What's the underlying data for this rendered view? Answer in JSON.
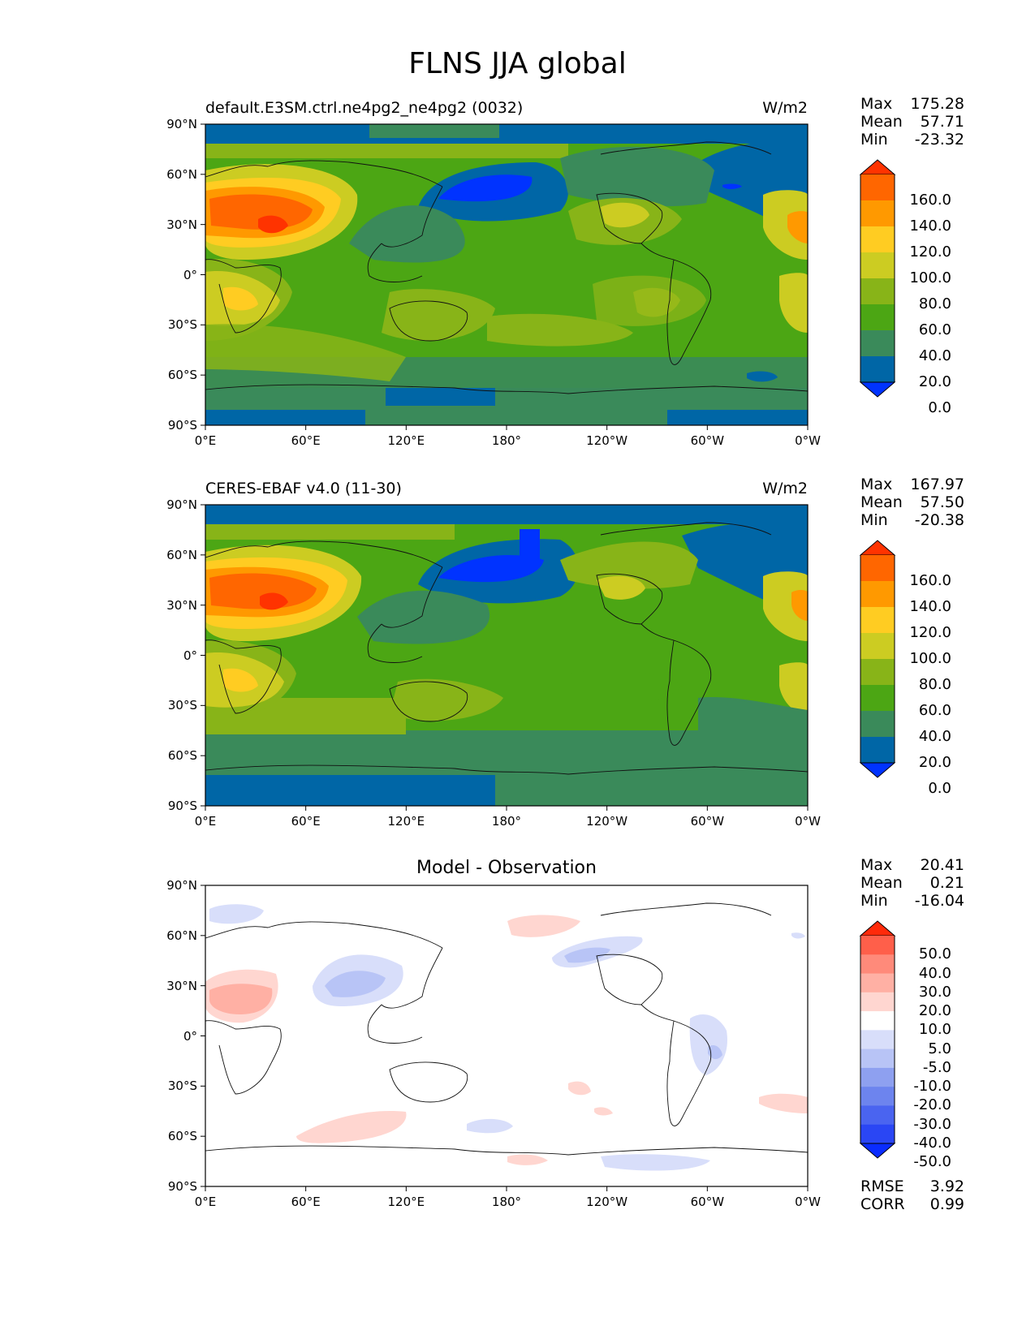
{
  "title": "FLNS JJA global",
  "panels": [
    {
      "left_title": "default.E3SM.ctrl.ne4pg2_ne4pg2 (0032)",
      "center_title": "",
      "units": "W/m2",
      "stats": [
        [
          "Max",
          "175.28"
        ],
        [
          "Mean",
          "57.71"
        ],
        [
          "Min",
          "-23.32"
        ]
      ],
      "colorbar_labels": [
        "160.0",
        "140.0",
        "120.0",
        "100.0",
        "80.0",
        "60.0",
        "40.0",
        "20.0",
        "0.0"
      ],
      "colorbar_colors": [
        "#ff3300",
        "#ff6600",
        "#ff9900",
        "#ffcc22",
        "#cccc22",
        "#88b418",
        "#4ca614",
        "#3a8a5a",
        "#0066a6",
        "#0033ff"
      ]
    },
    {
      "left_title": "CERES-EBAF v4.0 (11-30)",
      "center_title": "",
      "units": "W/m2",
      "stats": [
        [
          "Max",
          "167.97"
        ],
        [
          "Mean",
          "57.50"
        ],
        [
          "Min",
          "-20.38"
        ]
      ],
      "colorbar_labels": [
        "160.0",
        "140.0",
        "120.0",
        "100.0",
        "80.0",
        "60.0",
        "40.0",
        "20.0",
        "0.0"
      ],
      "colorbar_colors": [
        "#ff3300",
        "#ff6600",
        "#ff9900",
        "#ffcc22",
        "#cccc22",
        "#88b418",
        "#4ca614",
        "#3a8a5a",
        "#0066a6",
        "#0033ff"
      ]
    },
    {
      "left_title": "",
      "center_title": "Model - Observation",
      "units": "",
      "stats": [
        [
          "Max",
          "20.41"
        ],
        [
          "Mean",
          "0.21"
        ],
        [
          "Min",
          "-16.04"
        ]
      ],
      "colorbar_labels": [
        "50.0",
        "40.0",
        "30.0",
        "20.0",
        "10.0",
        "5.0",
        "-5.0",
        "-10.0",
        "-20.0",
        "-30.0",
        "-40.0",
        "-50.0"
      ],
      "colorbar_colors": [
        "#ff2a0a",
        "#ff5f4a",
        "#ff8a7a",
        "#ffb0a4",
        "#ffd6d0",
        "#ffffff",
        "#d8defa",
        "#b8c4f6",
        "#8ea0f0",
        "#6d84ee",
        "#4a64f0",
        "#2a46f4",
        "#0a2cff"
      ],
      "metrics": [
        [
          "RMSE",
          "3.92"
        ],
        [
          "CORR",
          "0.99"
        ]
      ]
    }
  ],
  "axes": {
    "x_ticks": [
      "0°E",
      "60°E",
      "120°E",
      "180°",
      "120°W",
      "60°W",
      "0°W"
    ],
    "y_ticks": [
      "90°N",
      "60°N",
      "30°N",
      "0°",
      "30°S",
      "60°S",
      "90°S"
    ]
  },
  "chart_data": [
    {
      "type": "heatmap",
      "title": "default.E3SM.ctrl.ne4pg2_ne4pg2 (0032)",
      "units": "W/m2",
      "x_ticks": [
        "0°E",
        "60°E",
        "120°E",
        "180°",
        "120°W",
        "60°W",
        "0°W"
      ],
      "y_ticks": [
        "90°N",
        "60°N",
        "30°N",
        "0°",
        "30°S",
        "60°S",
        "90°S"
      ],
      "contour_levels": [
        0,
        20,
        40,
        60,
        80,
        100,
        120,
        140,
        160
      ],
      "stats": {
        "max": 175.28,
        "mean": 57.71,
        "min": -23.32
      }
    },
    {
      "type": "heatmap",
      "title": "CERES-EBAF v4.0 (11-30)",
      "units": "W/m2",
      "x_ticks": [
        "0°E",
        "60°E",
        "120°E",
        "180°",
        "120°W",
        "60°W",
        "0°W"
      ],
      "y_ticks": [
        "90°N",
        "60°N",
        "30°N",
        "0°",
        "30°S",
        "60°S",
        "90°S"
      ],
      "contour_levels": [
        0,
        20,
        40,
        60,
        80,
        100,
        120,
        140,
        160
      ],
      "stats": {
        "max": 167.97,
        "mean": 57.5,
        "min": -20.38
      }
    },
    {
      "type": "heatmap",
      "title": "Model - Observation",
      "x_ticks": [
        "0°E",
        "60°E",
        "120°E",
        "180°",
        "120°W",
        "60°W",
        "0°W"
      ],
      "y_ticks": [
        "90°N",
        "60°N",
        "30°N",
        "0°",
        "30°S",
        "60°S",
        "90°S"
      ],
      "contour_levels": [
        -50,
        -40,
        -30,
        -20,
        -10,
        -5,
        5,
        10,
        20,
        30,
        40,
        50
      ],
      "stats": {
        "max": 20.41,
        "mean": 0.21,
        "min": -16.04
      },
      "rmse": 3.92,
      "corr": 0.99
    }
  ]
}
